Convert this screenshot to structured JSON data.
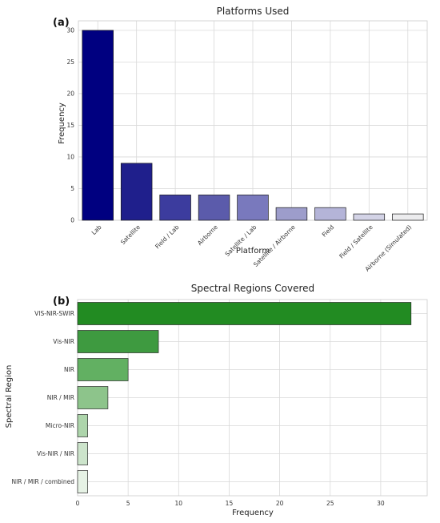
{
  "chart_data": [
    {
      "type": "bar",
      "panel_label": "(a)",
      "title": "Platforms Used",
      "xlabel": "Platform",
      "ylabel": "Frequency",
      "categories": [
        "Lab",
        "Satellite",
        "Field / Lab",
        "Airborne",
        "Satellite / Lab",
        "Satellite / Airborne",
        "Field",
        "Field / Satellite",
        "Airborne (Simulated)"
      ],
      "values": [
        30,
        9,
        4,
        4,
        4,
        2,
        2,
        1,
        1
      ],
      "ylim": [
        0,
        31.5
      ],
      "yticks": [
        0,
        5,
        10,
        15,
        20,
        25,
        30
      ],
      "grid": true,
      "colors": [
        "#000080",
        "#1f1f8c",
        "#3c3c9e",
        "#5b5bab",
        "#7979bd",
        "#9d9dcb",
        "#b4b4d8",
        "#d3d3e6",
        "#ececee"
      ]
    },
    {
      "type": "bar",
      "orientation": "horizontal",
      "panel_label": "(b)",
      "title": "Spectral Regions Covered",
      "xlabel": "Frequency",
      "ylabel": "Spectral Region",
      "categories": [
        "VIS-NIR-SWIR",
        "Vis-NIR",
        "NIR",
        "NIR / MIR",
        "Micro-NIR",
        "Vis-NIR / NIR",
        "NIR / MIR / combined"
      ],
      "values": [
        33,
        8,
        5,
        3,
        1,
        1,
        1
      ],
      "xlim": [
        0,
        34.6
      ],
      "xticks": [
        0,
        5,
        10,
        15,
        20,
        25,
        30
      ],
      "grid": true,
      "colors": [
        "#228b22",
        "#3e9a40",
        "#62b062",
        "#8dc48b",
        "#add5ab",
        "#cce4cb",
        "#e6f2e5"
      ]
    }
  ]
}
